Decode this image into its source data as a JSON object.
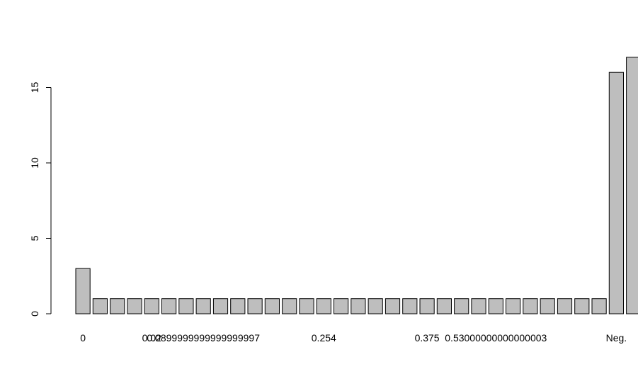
{
  "chart_data": {
    "type": "bar",
    "title": "",
    "xlabel": "",
    "ylabel": "",
    "ylim": [
      0,
      17
    ],
    "yticks": [
      0,
      5,
      10,
      15
    ],
    "grid": false,
    "categories": [
      "0",
      "",
      "",
      "",
      "0.02",
      "",
      "",
      "0.0899999999999999997",
      "",
      "",
      "",
      "",
      "",
      "",
      "0.254",
      "",
      "",
      "",
      "",
      "",
      "0.375",
      "",
      "",
      "",
      "0.53000000000000003",
      "",
      "",
      "",
      "",
      "",
      "",
      "Neg.",
      ""
    ],
    "values": [
      3,
      1,
      1,
      1,
      1,
      1,
      1,
      1,
      1,
      1,
      1,
      1,
      1,
      1,
      1,
      1,
      1,
      1,
      1,
      1,
      1,
      1,
      1,
      1,
      1,
      1,
      1,
      1,
      1,
      1,
      1,
      16,
      17
    ],
    "colors": {
      "bar_fill": "#bebebe",
      "bar_stroke": "#000000",
      "axis": "#000000"
    }
  }
}
